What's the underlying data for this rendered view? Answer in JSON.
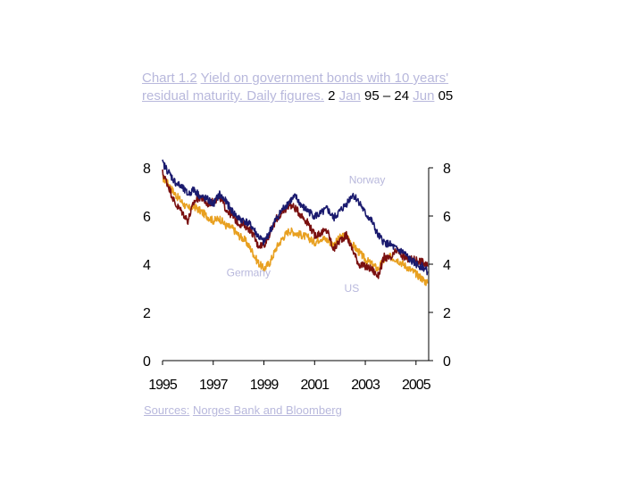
{
  "title": {
    "parts": [
      {
        "text": "Chart 1.2",
        "link": true
      },
      {
        "text": " ",
        "link": false
      },
      {
        "text": "Yield on government bonds with 10 years' residual maturity. Daily figures.",
        "link": true
      },
      {
        "text": " 2 ",
        "link": false
      },
      {
        "text": "Jan",
        "link": true
      },
      {
        "text": " 95 – 24 ",
        "link": false
      },
      {
        "text": "Jun",
        "link": true
      },
      {
        "text": " 05",
        "link": false
      }
    ]
  },
  "source": {
    "label": "Sources:",
    "text": "Norges Bank and Bloomberg"
  },
  "colors": {
    "norway": "#1a1a6e",
    "germany": "#e8a020",
    "us": "#7a1010",
    "label": "#b8b8dc"
  },
  "chart_data": {
    "type": "line",
    "title": "",
    "xlabel": "",
    "ylabel": "",
    "xlim": [
      1995.0,
      2005.5
    ],
    "ylim": [
      0,
      8
    ],
    "xticks": [
      "1995",
      "1997",
      "1999",
      "2001",
      "2003",
      "2005"
    ],
    "yticks_left": [
      "0",
      "2",
      "4",
      "6",
      "8"
    ],
    "yticks_right": [
      "0",
      "2",
      "4",
      "6",
      "8"
    ],
    "grid": false,
    "legend": "inline labels",
    "series": [
      {
        "name": "Norway",
        "color": "#1a1a6e",
        "x": [
          1995.0,
          1995.25,
          1995.5,
          1995.75,
          1996.0,
          1996.25,
          1996.5,
          1996.75,
          1997.0,
          1997.25,
          1997.5,
          1997.75,
          1998.0,
          1998.25,
          1998.5,
          1998.75,
          1999.0,
          1999.25,
          1999.5,
          1999.75,
          2000.0,
          2000.25,
          2000.5,
          2000.75,
          2001.0,
          2001.25,
          2001.5,
          2001.75,
          2002.0,
          2002.25,
          2002.5,
          2002.75,
          2003.0,
          2003.25,
          2003.5,
          2003.75,
          2004.0,
          2004.25,
          2004.5,
          2004.75,
          2005.0,
          2005.25,
          2005.45
        ],
        "y": [
          8.2,
          7.8,
          7.4,
          7.2,
          6.9,
          7.1,
          6.8,
          6.7,
          6.5,
          6.9,
          6.6,
          6.2,
          5.9,
          5.8,
          5.6,
          5.2,
          4.9,
          5.4,
          5.9,
          6.3,
          6.6,
          6.8,
          6.4,
          6.2,
          6.0,
          6.1,
          6.3,
          5.9,
          6.2,
          6.5,
          6.9,
          6.6,
          6.1,
          5.8,
          5.2,
          4.9,
          4.8,
          4.6,
          4.5,
          4.2,
          4.0,
          3.9,
          3.7
        ]
      },
      {
        "name": "Germany",
        "color": "#e8a020",
        "x": [
          1995.0,
          1995.25,
          1995.5,
          1995.75,
          1996.0,
          1996.25,
          1996.5,
          1996.75,
          1997.0,
          1997.25,
          1997.5,
          1997.75,
          1998.0,
          1998.25,
          1998.5,
          1998.75,
          1999.0,
          1999.25,
          1999.5,
          1999.75,
          2000.0,
          2000.25,
          2000.5,
          2000.75,
          2001.0,
          2001.25,
          2001.5,
          2001.75,
          2002.0,
          2002.25,
          2002.5,
          2002.75,
          2003.0,
          2003.25,
          2003.5,
          2003.75,
          2004.0,
          2004.25,
          2004.5,
          2004.75,
          2005.0,
          2005.25,
          2005.45
        ],
        "y": [
          7.6,
          7.3,
          6.9,
          6.6,
          6.3,
          6.4,
          6.2,
          6.0,
          5.8,
          5.9,
          5.6,
          5.5,
          5.2,
          5.0,
          4.6,
          4.1,
          3.8,
          4.1,
          4.7,
          5.1,
          5.4,
          5.3,
          5.2,
          5.1,
          4.9,
          5.1,
          5.0,
          4.8,
          5.1,
          5.2,
          4.8,
          4.5,
          4.2,
          4.0,
          3.8,
          4.2,
          4.3,
          4.2,
          4.0,
          3.8,
          3.6,
          3.4,
          3.2
        ]
      },
      {
        "name": "US",
        "color": "#7a1010",
        "x": [
          1995.0,
          1995.25,
          1995.5,
          1995.75,
          1996.0,
          1996.25,
          1996.5,
          1996.75,
          1997.0,
          1997.25,
          1997.5,
          1997.75,
          1998.0,
          1998.25,
          1998.5,
          1998.75,
          1999.0,
          1999.25,
          1999.5,
          1999.75,
          2000.0,
          2000.25,
          2000.5,
          2000.75,
          2001.0,
          2001.25,
          2001.5,
          2001.75,
          2002.0,
          2002.25,
          2002.5,
          2002.75,
          2003.0,
          2003.25,
          2003.5,
          2003.75,
          2004.0,
          2004.25,
          2004.5,
          2004.75,
          2005.0,
          2005.25,
          2005.45
        ],
        "y": [
          7.8,
          7.2,
          6.5,
          6.2,
          5.8,
          6.6,
          6.8,
          6.5,
          6.6,
          6.8,
          6.3,
          6.0,
          5.7,
          5.6,
          5.4,
          4.8,
          4.8,
          5.3,
          5.9,
          6.1,
          6.5,
          6.3,
          6.0,
          5.7,
          5.2,
          5.3,
          5.4,
          4.6,
          5.0,
          5.2,
          4.6,
          4.0,
          3.9,
          3.8,
          3.5,
          4.3,
          4.2,
          4.6,
          4.3,
          4.2,
          4.2,
          4.1,
          3.9
        ]
      }
    ],
    "annotations": [
      {
        "text": "Norway",
        "series": "Norway"
      },
      {
        "text": "Germany",
        "series": "Germany"
      },
      {
        "text": "US",
        "series": "US"
      }
    ]
  }
}
